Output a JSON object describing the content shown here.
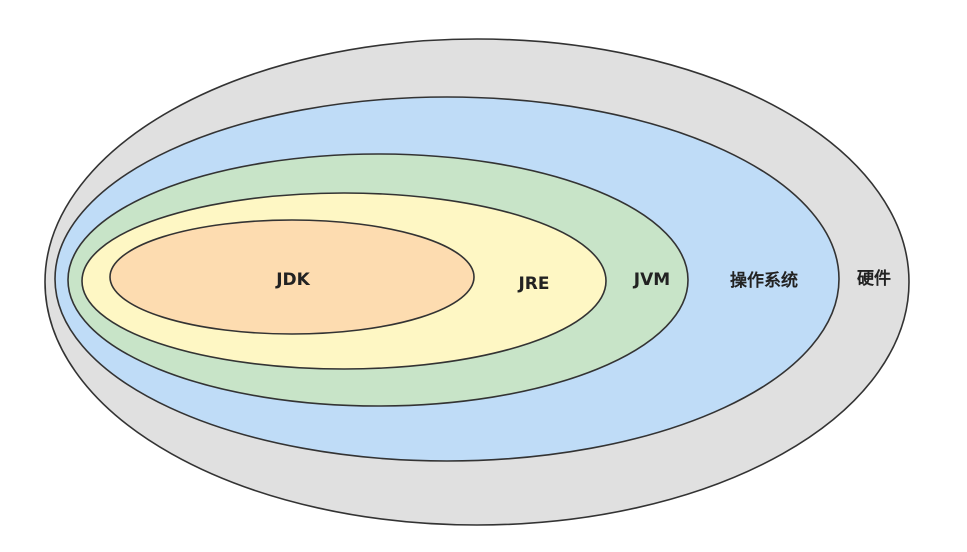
{
  "diagram": {
    "layers": [
      {
        "key": "hardware",
        "label": "硬件",
        "fill": "#e0e0e0"
      },
      {
        "key": "os",
        "label": "操作系统",
        "fill": "#bfdcf7"
      },
      {
        "key": "jvm",
        "label": "JVM",
        "fill": "#c8e4c8"
      },
      {
        "key": "jre",
        "label": "JRE",
        "fill": "#fef7c4"
      },
      {
        "key": "jdk",
        "label": "JDK",
        "fill": "#fddcb0"
      }
    ]
  }
}
